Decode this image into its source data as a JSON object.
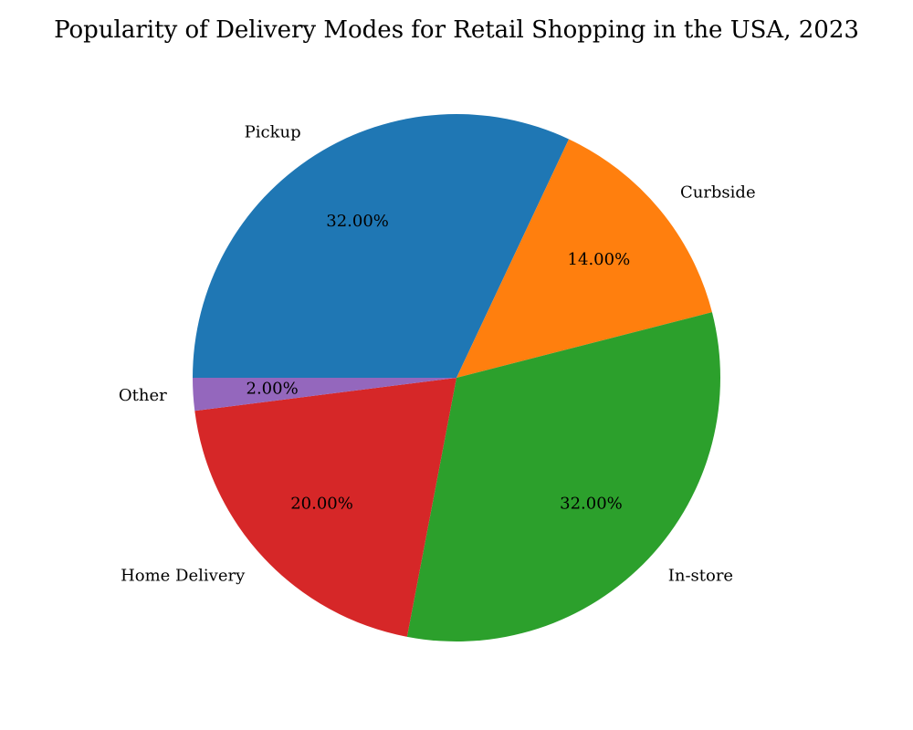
{
  "chart_data": {
    "type": "pie",
    "title": "Popularity of Delivery Modes for Retail Shopping in the USA, 2023",
    "categories": [
      "Pickup",
      "Curbside",
      "In-store",
      "Home Delivery",
      "Other"
    ],
    "values": [
      32,
      14,
      32,
      20,
      2
    ],
    "value_labels": [
      "32.00%",
      "14.00%",
      "32.00%",
      "20.00%",
      "2.00%"
    ],
    "colors": [
      "#1f77b4",
      "#ff7f0e",
      "#2ca02c",
      "#d62728",
      "#9467bd"
    ],
    "start_angle_deg": 180,
    "direction": "clockwise",
    "legend": "none"
  }
}
